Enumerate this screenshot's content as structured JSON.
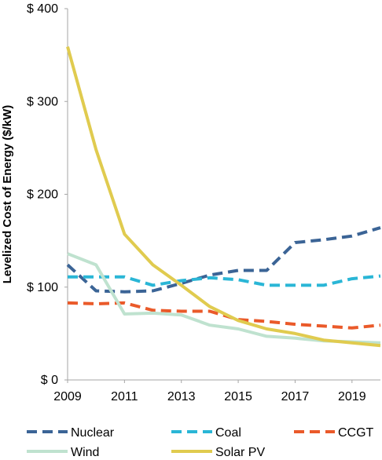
{
  "chart_data": {
    "type": "line",
    "title": "",
    "xlabel": "",
    "ylabel": "Levelized Cost of Energy ($/kW)",
    "xlim": [
      2009,
      2020
    ],
    "ylim": [
      0,
      400
    ],
    "x_ticks": [
      "2009",
      "2011",
      "2013",
      "2015",
      "2017",
      "2019"
    ],
    "y_ticks": [
      "$ 0",
      "$ 100",
      "$ 200",
      "$ 300",
      "$ 400"
    ],
    "grid": false,
    "legend_position": "bottom",
    "x": [
      2009,
      2010,
      2011,
      2012,
      2013,
      2014,
      2015,
      2016,
      2017,
      2018,
      2019,
      2020
    ],
    "series": [
      {
        "name": "Nuclear",
        "color": "#3b6496",
        "dash": "dashed",
        "values": [
          124,
          96,
          95,
          96,
          104,
          113,
          118,
          118,
          148,
          151,
          155,
          164
        ]
      },
      {
        "name": "Coal",
        "color": "#2ab6d6",
        "dash": "dashed",
        "values": [
          111,
          111,
          111,
          102,
          107,
          110,
          108,
          102,
          102,
          102,
          109,
          112
        ]
      },
      {
        "name": "CCGT",
        "color": "#ea5a2a",
        "dash": "dashed",
        "values": [
          83,
          82,
          83,
          75,
          74,
          74,
          65,
          63,
          60,
          58,
          56,
          59
        ]
      },
      {
        "name": "Wind",
        "color": "#bfe2cf",
        "dash": "solid",
        "values": [
          136,
          124,
          71,
          72,
          70,
          59,
          55,
          47,
          45,
          42,
          41,
          40
        ]
      },
      {
        "name": "Solar PV",
        "color": "#e0cb4f",
        "dash": "solid",
        "values": [
          359,
          248,
          157,
          124,
          102,
          79,
          64,
          55,
          50,
          43,
          40,
          37
        ]
      }
    ]
  }
}
